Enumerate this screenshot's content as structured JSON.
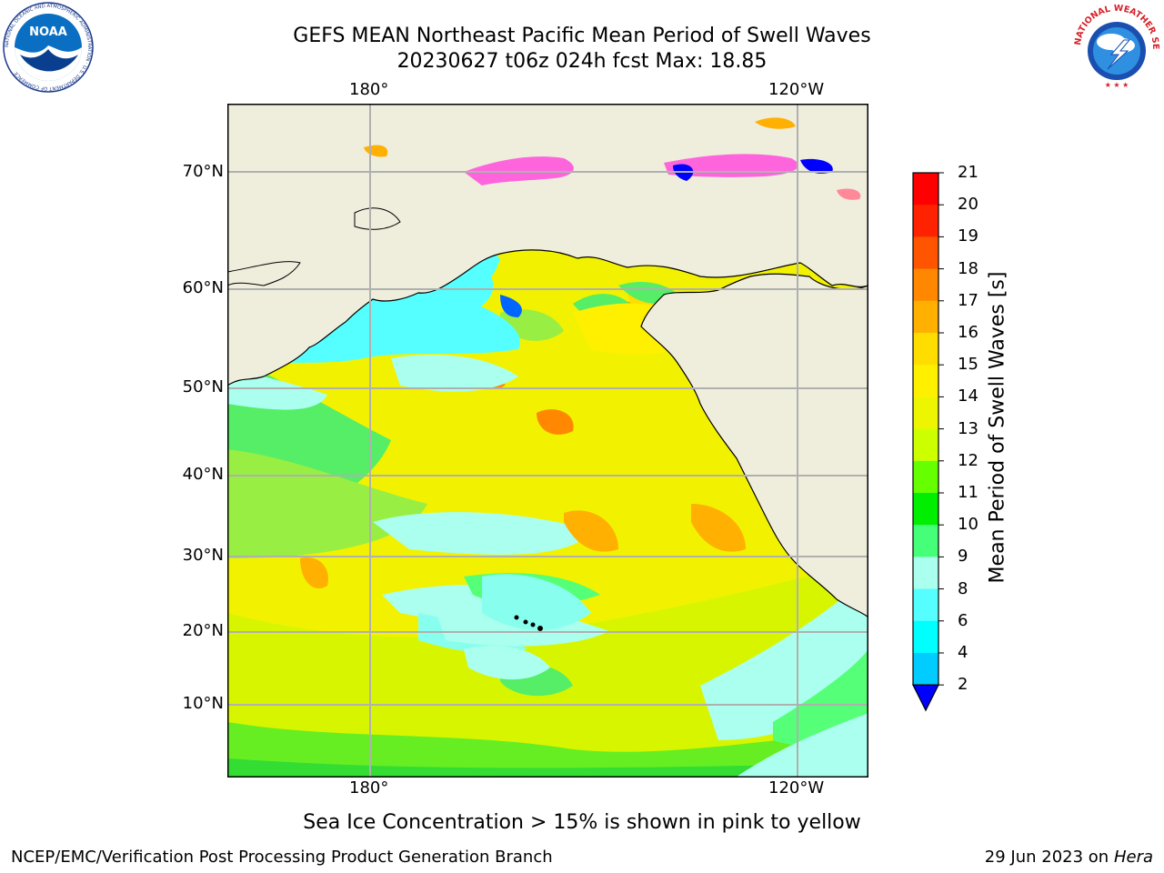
{
  "header": {
    "title_line1": "GEFS MEAN Northeast Pacific Mean Period of Swell Waves",
    "title_line2": "20230627 t06z 024h fcst   Max: 18.85"
  },
  "map": {
    "lon_labels_top": [
      "180°",
      "120°W"
    ],
    "lon_labels_bottom": [
      "180°",
      "120°W"
    ],
    "lat_labels": [
      "70°N",
      "60°N",
      "50°N",
      "40°N",
      "30°N",
      "20°N",
      "10°N"
    ]
  },
  "colorbar": {
    "title": "Mean Period of Swell Waves [s]",
    "ticks": [
      "21",
      "20",
      "19",
      "18",
      "17",
      "16",
      "15",
      "14",
      "13",
      "12",
      "11",
      "10",
      "9",
      "8",
      "6",
      "4",
      "2"
    ],
    "colors": [
      "#ff0000",
      "#ff2200",
      "#ff5500",
      "#ff8800",
      "#ffb000",
      "#ffdd00",
      "#fff000",
      "#eef500",
      "#ccff00",
      "#66ff00",
      "#00ee00",
      "#44ff77",
      "#aaffee",
      "#55ffff",
      "#00ffff",
      "#00ccff",
      "#0066ff"
    ],
    "extend_color": "#0000ff"
  },
  "subnote": "Sea Ice Concentration > 15% is shown in pink to yellow",
  "footer": {
    "left": "NCEP/EMC/Verification Post Processing Product Generation Branch",
    "right_date": "29 Jun 2023 on",
    "right_host": "Hera"
  },
  "logos": {
    "noaa_text": "NOAA",
    "noaa_ring_text": "NATIONAL OCEANIC AND ATMOSPHERIC ADMINISTRATION · U.S. DEPARTMENT OF COMMERCE",
    "nws_ring_text": "NATIONAL WEATHER SERVICE"
  }
}
